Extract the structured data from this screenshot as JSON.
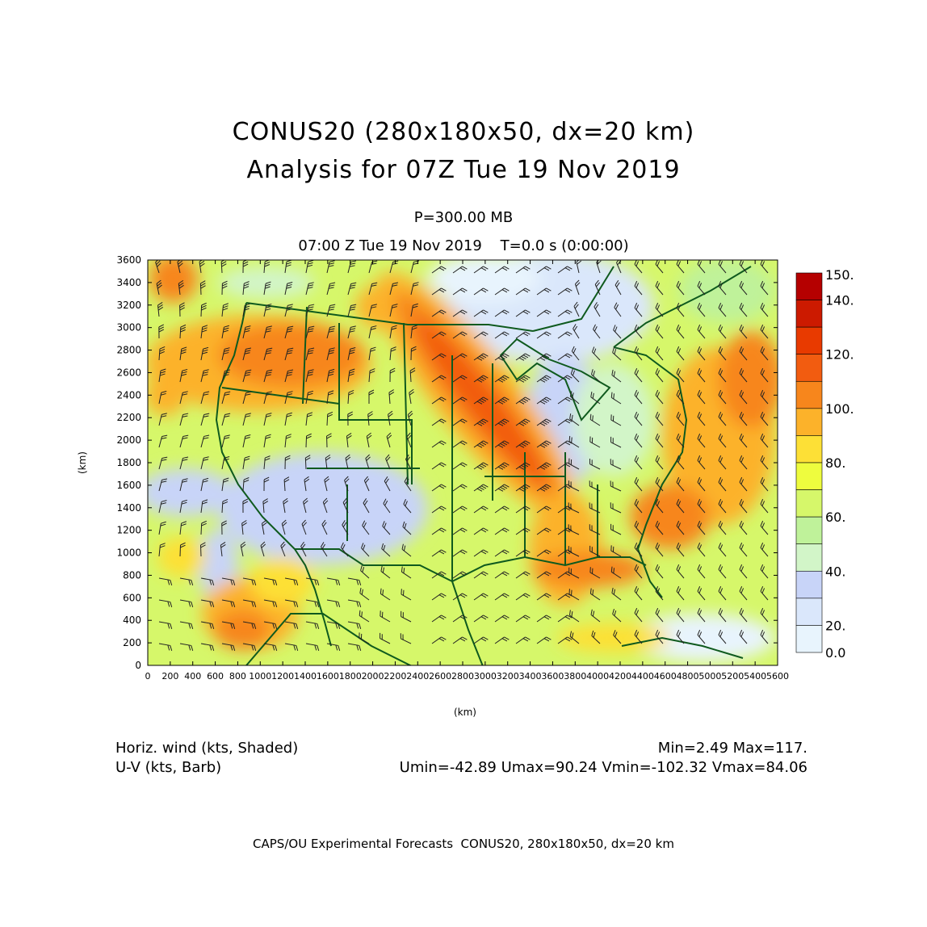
{
  "header": {
    "title_line1": "CONUS20 (280x180x50, dx=20 km)",
    "title_line2": "Analysis for 07Z Tue 19 Nov 2019",
    "level": "P=300.00 MB",
    "valid_time": "07:00 Z Tue 19 Nov 2019    T=0.0 s (0:00:00)"
  },
  "axes": {
    "x_label": "(km)",
    "y_label": "(km)",
    "x_ticks": [
      "0",
      "200",
      "400",
      "600",
      "800",
      "1000",
      "1200",
      "1400",
      "1600",
      "1800",
      "2000",
      "2200",
      "2400",
      "2600",
      "2800",
      "3000",
      "3200",
      "3400",
      "3600",
      "3800",
      "4000",
      "4200",
      "4400",
      "4600",
      "4800",
      "5000",
      "5200",
      "5400",
      "5600"
    ],
    "y_ticks": [
      "0",
      "200",
      "400",
      "600",
      "800",
      "1000",
      "1200",
      "1400",
      "1600",
      "1800",
      "2000",
      "2200",
      "2400",
      "2600",
      "2800",
      "3000",
      "3200",
      "3400",
      "3600"
    ],
    "x_range_km": [
      0,
      5600
    ],
    "y_range_km": [
      0,
      3600
    ]
  },
  "colorbar": {
    "labels": [
      "150.",
      "140.",
      "120.",
      "100.",
      "80.",
      "60.",
      "40.",
      "20.",
      "0.0"
    ],
    "colors": [
      "#b50000",
      "#cc1a00",
      "#e83a00",
      "#f25c10",
      "#f7861c",
      "#fcb22a",
      "#fde036",
      "#eefc3e",
      "#d6f76a",
      "#bff29a",
      "#d2f5c8",
      "#c8d4f8",
      "#dae7fb",
      "#e8f4fd"
    ]
  },
  "legend": {
    "left_line1": "Horiz. wind (kts, Shaded)",
    "left_line2": "U-V (kts, Barb)",
    "right_line1": "Min=2.49 Max=117.",
    "right_line2": "Umin=-42.89 Umax=90.24 Vmin=-102.32 Vmax=84.06"
  },
  "footer": "CAPS/OU Experimental Forecasts  CONUS20, 280x180x50, dx=20 km",
  "colors": {
    "map_lines": "#0f5a1e",
    "frame": "#000000"
  }
}
